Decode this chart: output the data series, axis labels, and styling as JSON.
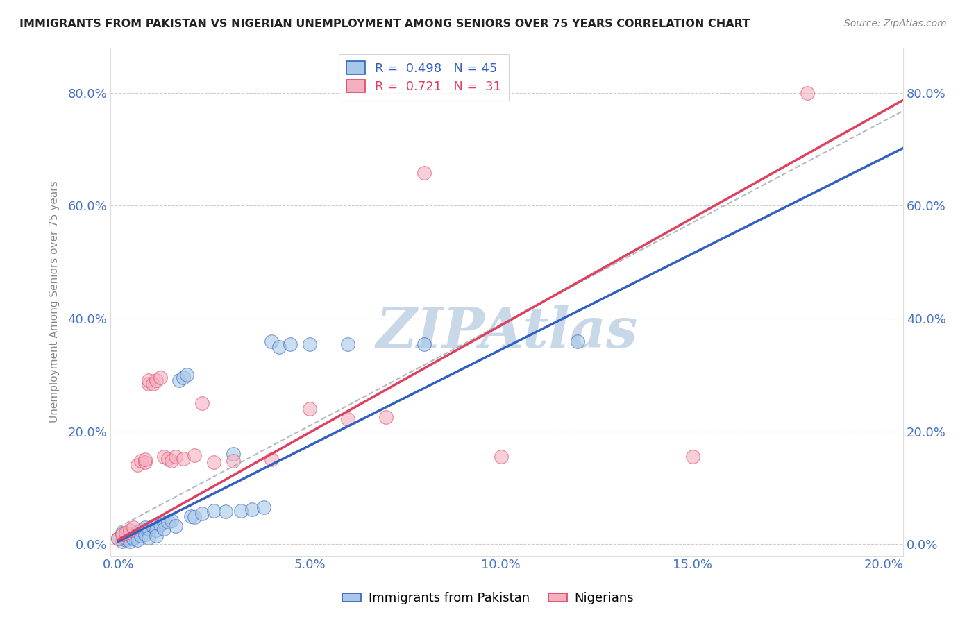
{
  "title": "IMMIGRANTS FROM PAKISTAN VS NIGERIAN UNEMPLOYMENT AMONG SENIORS OVER 75 YEARS CORRELATION CHART",
  "source": "Source: ZipAtlas.com",
  "xlabel_ticks": [
    "0.0%",
    "5.0%",
    "10.0%",
    "15.0%",
    "20.0%"
  ],
  "xlabel_vals": [
    0.0,
    0.05,
    0.1,
    0.15,
    0.2
  ],
  "ylabel_ticks": [
    "0.0%",
    "20.0%",
    "40.0%",
    "60.0%",
    "80.0%"
  ],
  "ylabel_vals": [
    0.0,
    0.2,
    0.4,
    0.6,
    0.8
  ],
  "ylabel_label": "Unemployment Among Seniors over 75 years",
  "legend_blue_label": "Immigrants from Pakistan",
  "legend_pink_label": "Nigerians",
  "R_blue": 0.498,
  "N_blue": 45,
  "R_pink": 0.721,
  "N_pink": 31,
  "blue_color": "#a8c8e8",
  "pink_color": "#f4b0c0",
  "blue_line_color": "#3060c0",
  "pink_line_color": "#e04060",
  "blue_scatter": [
    [
      0.0,
      0.01
    ],
    [
      0.001,
      0.005
    ],
    [
      0.001,
      0.02
    ],
    [
      0.002,
      0.008
    ],
    [
      0.002,
      0.012
    ],
    [
      0.003,
      0.015
    ],
    [
      0.003,
      0.005
    ],
    [
      0.004,
      0.018
    ],
    [
      0.004,
      0.01
    ],
    [
      0.005,
      0.022
    ],
    [
      0.005,
      0.008
    ],
    [
      0.006,
      0.025
    ],
    [
      0.006,
      0.015
    ],
    [
      0.007,
      0.03
    ],
    [
      0.007,
      0.018
    ],
    [
      0.008,
      0.028
    ],
    [
      0.008,
      0.012
    ],
    [
      0.009,
      0.032
    ],
    [
      0.01,
      0.025
    ],
    [
      0.01,
      0.015
    ],
    [
      0.011,
      0.035
    ],
    [
      0.012,
      0.038
    ],
    [
      0.012,
      0.028
    ],
    [
      0.013,
      0.04
    ],
    [
      0.014,
      0.042
    ],
    [
      0.015,
      0.032
    ],
    [
      0.016,
      0.29
    ],
    [
      0.017,
      0.295
    ],
    [
      0.018,
      0.3
    ],
    [
      0.019,
      0.05
    ],
    [
      0.02,
      0.048
    ],
    [
      0.022,
      0.055
    ],
    [
      0.025,
      0.06
    ],
    [
      0.028,
      0.058
    ],
    [
      0.03,
      0.16
    ],
    [
      0.032,
      0.06
    ],
    [
      0.035,
      0.062
    ],
    [
      0.038,
      0.065
    ],
    [
      0.04,
      0.36
    ],
    [
      0.042,
      0.35
    ],
    [
      0.045,
      0.355
    ],
    [
      0.05,
      0.355
    ],
    [
      0.06,
      0.355
    ],
    [
      0.08,
      0.355
    ],
    [
      0.12,
      0.36
    ]
  ],
  "pink_scatter": [
    [
      0.0,
      0.01
    ],
    [
      0.001,
      0.018
    ],
    [
      0.002,
      0.02
    ],
    [
      0.003,
      0.025
    ],
    [
      0.004,
      0.03
    ],
    [
      0.005,
      0.14
    ],
    [
      0.006,
      0.148
    ],
    [
      0.007,
      0.145
    ],
    [
      0.007,
      0.15
    ],
    [
      0.008,
      0.285
    ],
    [
      0.008,
      0.29
    ],
    [
      0.009,
      0.285
    ],
    [
      0.01,
      0.29
    ],
    [
      0.011,
      0.295
    ],
    [
      0.012,
      0.155
    ],
    [
      0.013,
      0.152
    ],
    [
      0.014,
      0.148
    ],
    [
      0.015,
      0.155
    ],
    [
      0.017,
      0.152
    ],
    [
      0.02,
      0.158
    ],
    [
      0.022,
      0.25
    ],
    [
      0.025,
      0.145
    ],
    [
      0.03,
      0.148
    ],
    [
      0.04,
      0.15
    ],
    [
      0.05,
      0.24
    ],
    [
      0.06,
      0.222
    ],
    [
      0.07,
      0.225
    ],
    [
      0.08,
      0.658
    ],
    [
      0.1,
      0.155
    ],
    [
      0.15,
      0.155
    ],
    [
      0.18,
      0.8
    ]
  ],
  "watermark": "ZIPAtlas",
  "watermark_color": "#c8d8e8",
  "background_color": "#ffffff",
  "xlim": [
    -0.002,
    0.205
  ],
  "ylim": [
    -0.02,
    0.88
  ],
  "blue_reg": [
    0.0,
    3.4,
    0.005
  ],
  "pink_reg": [
    0.0,
    3.8,
    0.008
  ],
  "dashed_line": [
    0.0,
    3.6,
    0.03
  ]
}
